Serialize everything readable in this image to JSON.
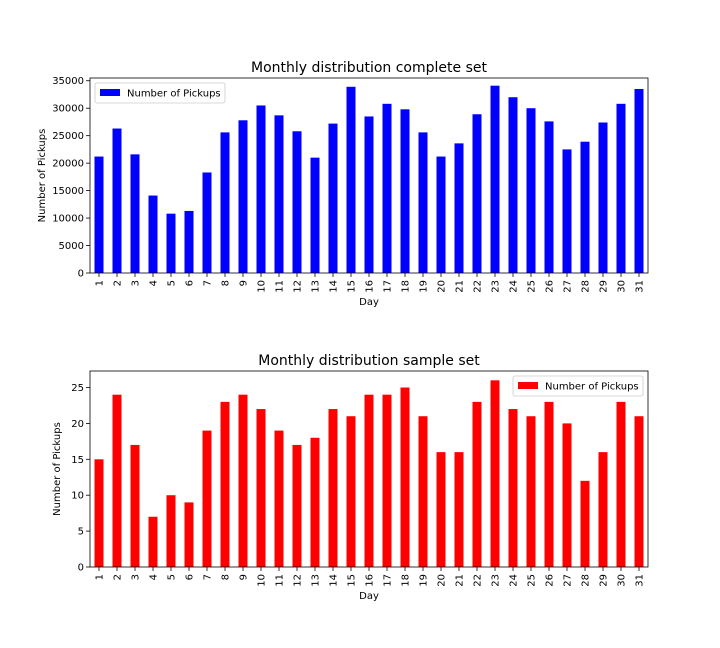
{
  "chart_data": [
    {
      "type": "bar",
      "title": "Monthly distribution complete set",
      "xlabel": "Day",
      "ylabel": "Number of Pickups",
      "ylim": [
        0,
        35500
      ],
      "yticks": [
        0,
        5000,
        10000,
        15000,
        20000,
        25000,
        30000,
        35000
      ],
      "categories": [
        "1",
        "2",
        "3",
        "4",
        "5",
        "6",
        "7",
        "8",
        "9",
        "10",
        "11",
        "12",
        "13",
        "14",
        "15",
        "16",
        "17",
        "18",
        "19",
        "20",
        "21",
        "22",
        "23",
        "24",
        "25",
        "26",
        "27",
        "28",
        "29",
        "30",
        "31"
      ],
      "series": [
        {
          "name": "Number of Pickups",
          "color": "#0000ff",
          "values": [
            21200,
            26300,
            21600,
            14100,
            10800,
            11300,
            18300,
            25600,
            27800,
            30500,
            28700,
            25800,
            21000,
            27200,
            33900,
            28500,
            30800,
            29800,
            25600,
            21200,
            23600,
            28900,
            34100,
            32000,
            30000,
            27600,
            22500,
            23900,
            27400,
            30800,
            33500
          ]
        }
      ],
      "legend": "top-left",
      "grid": false
    },
    {
      "type": "bar",
      "title": "Monthly distribution sample set",
      "xlabel": "Day",
      "ylabel": "Number of Pickups",
      "ylim": [
        0,
        27.3
      ],
      "yticks": [
        0,
        5,
        10,
        15,
        20,
        25
      ],
      "categories": [
        "1",
        "2",
        "3",
        "4",
        "5",
        "6",
        "7",
        "8",
        "9",
        "10",
        "11",
        "12",
        "13",
        "14",
        "15",
        "16",
        "17",
        "18",
        "19",
        "20",
        "21",
        "22",
        "23",
        "24",
        "25",
        "26",
        "27",
        "28",
        "29",
        "30",
        "31"
      ],
      "series": [
        {
          "name": "Number of Pickups",
          "color": "#ff0000",
          "values": [
            15,
            24,
            17,
            7,
            10,
            9,
            19,
            23,
            24,
            22,
            19,
            17,
            18,
            22,
            21,
            24,
            24,
            25,
            21,
            16,
            16,
            23,
            26,
            22,
            21,
            23,
            20,
            12,
            16,
            23,
            21
          ]
        }
      ],
      "legend": "top-right",
      "grid": false
    }
  ]
}
